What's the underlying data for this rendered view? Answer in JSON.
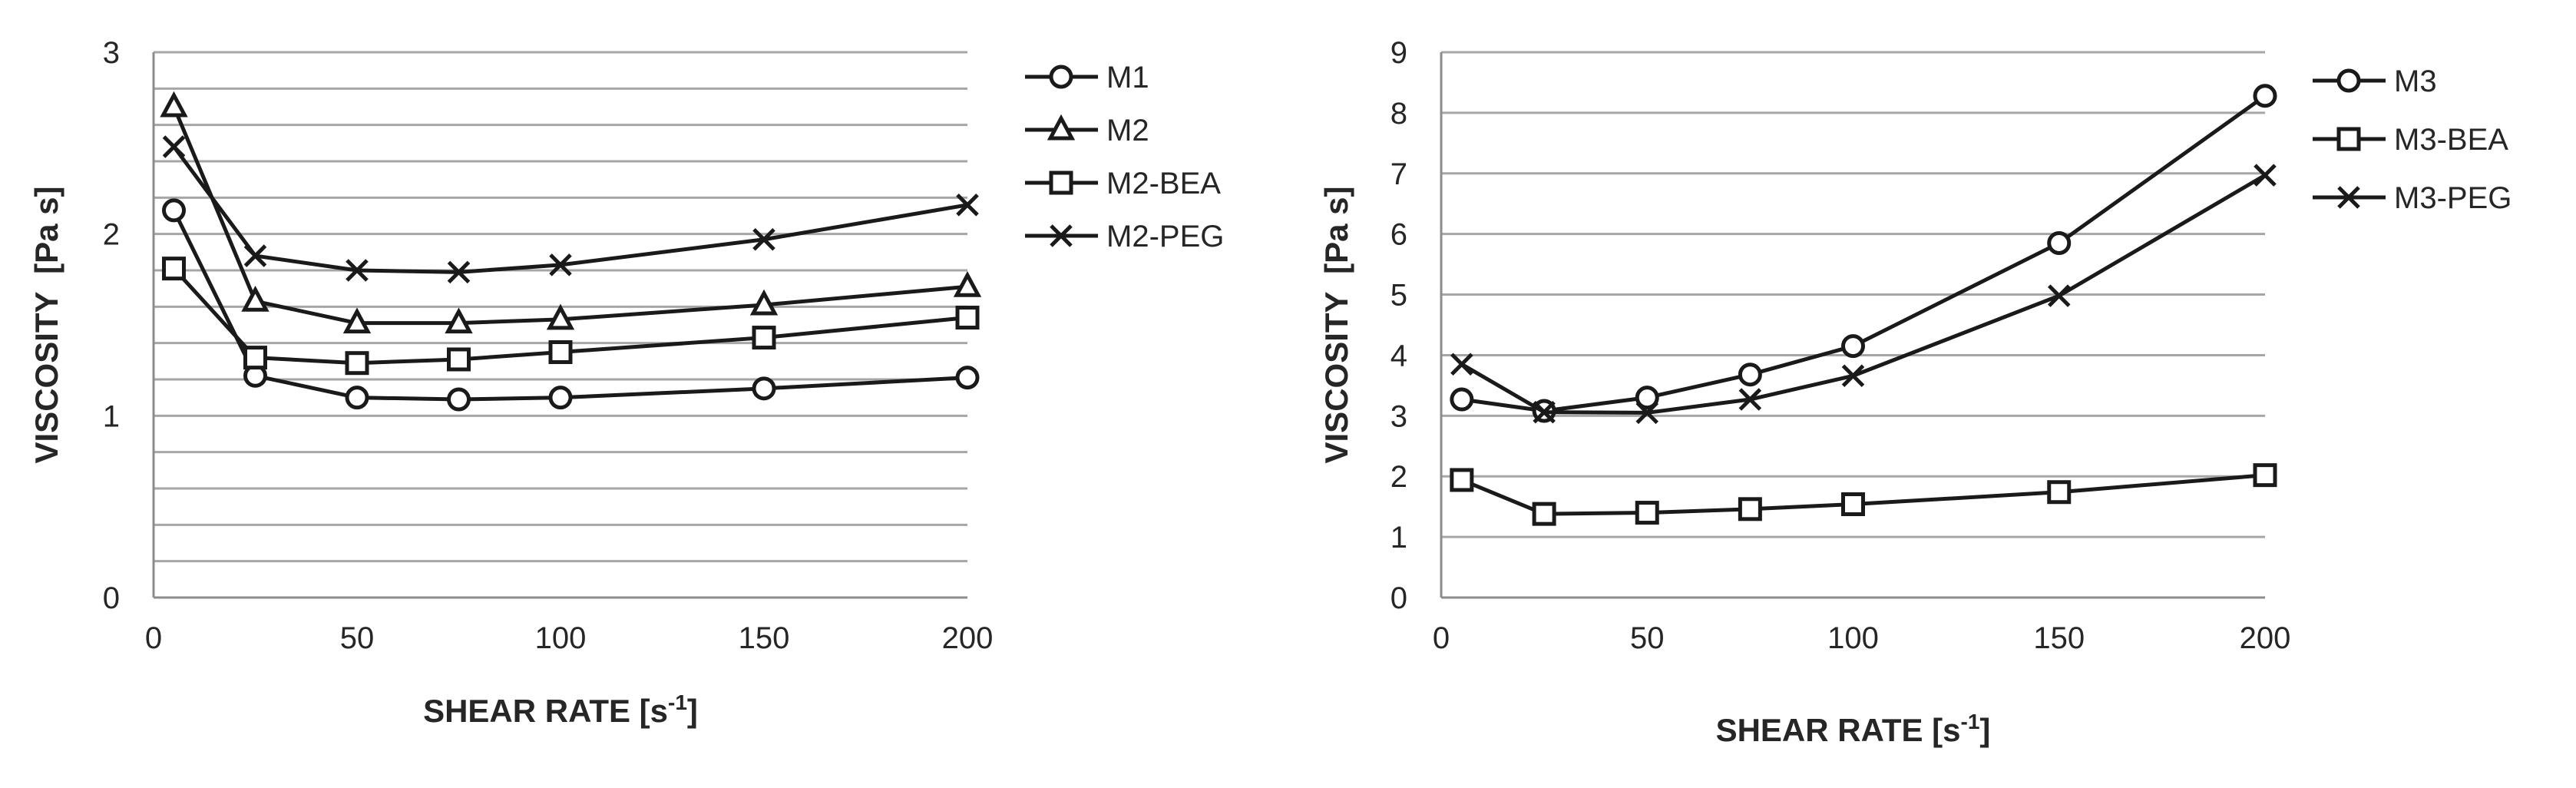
{
  "colors": {
    "grid": "#a6a6a6",
    "axis": "#8c8c8c",
    "series": "#1a1a1a",
    "text": "#262626"
  },
  "chart_data": [
    {
      "type": "line",
      "title": "",
      "xlabel": "SHEAR RATE [s",
      "xlabel_sup": "-1",
      "xlabel_close": "]",
      "ylabel": "VISCOSITY  [Pa s]",
      "xlim": [
        0,
        200
      ],
      "ylim": [
        0,
        3
      ],
      "xticks": [
        0,
        50,
        100,
        150,
        200
      ],
      "yticks": [
        0,
        1,
        2,
        3
      ],
      "ygrid_step": 0.2,
      "grid": true,
      "legend_position": "right",
      "x": [
        5,
        25,
        50,
        75,
        100,
        150,
        200
      ],
      "series": [
        {
          "name": "M1",
          "marker": "circle",
          "values": [
            2.13,
            1.22,
            1.1,
            1.09,
            1.1,
            1.15,
            1.21
          ]
        },
        {
          "name": "M2",
          "marker": "triangle",
          "values": [
            2.7,
            1.63,
            1.51,
            1.51,
            1.53,
            1.61,
            1.71
          ]
        },
        {
          "name": "M2-BEA",
          "marker": "square",
          "values": [
            1.81,
            1.32,
            1.29,
            1.31,
            1.35,
            1.43,
            1.54
          ]
        },
        {
          "name": "M2-PEG",
          "marker": "x",
          "values": [
            2.48,
            1.88,
            1.8,
            1.79,
            1.83,
            1.97,
            2.16
          ]
        }
      ]
    },
    {
      "type": "line",
      "title": "",
      "xlabel": "SHEAR RATE [s",
      "xlabel_sup": "-1",
      "xlabel_close": "]",
      "ylabel": "VISCOSITY  [Pa s]",
      "xlim": [
        0,
        200
      ],
      "ylim": [
        0,
        9
      ],
      "xticks": [
        0,
        50,
        100,
        150,
        200
      ],
      "yticks": [
        0,
        1,
        2,
        3,
        4,
        5,
        6,
        7,
        8,
        9
      ],
      "ygrid_step": 1,
      "grid": true,
      "legend_position": "right",
      "x": [
        5,
        25,
        50,
        75,
        100,
        150,
        200
      ],
      "series": [
        {
          "name": "M3",
          "marker": "circle",
          "values": [
            3.27,
            3.08,
            3.3,
            3.68,
            4.15,
            5.85,
            8.28
          ]
        },
        {
          "name": "M3-BEA",
          "marker": "square",
          "values": [
            1.94,
            1.38,
            1.4,
            1.46,
            1.54,
            1.74,
            2.02
          ]
        },
        {
          "name": "M3-PEG",
          "marker": "x",
          "values": [
            3.85,
            3.06,
            3.05,
            3.27,
            3.66,
            4.98,
            6.97
          ]
        }
      ]
    }
  ]
}
